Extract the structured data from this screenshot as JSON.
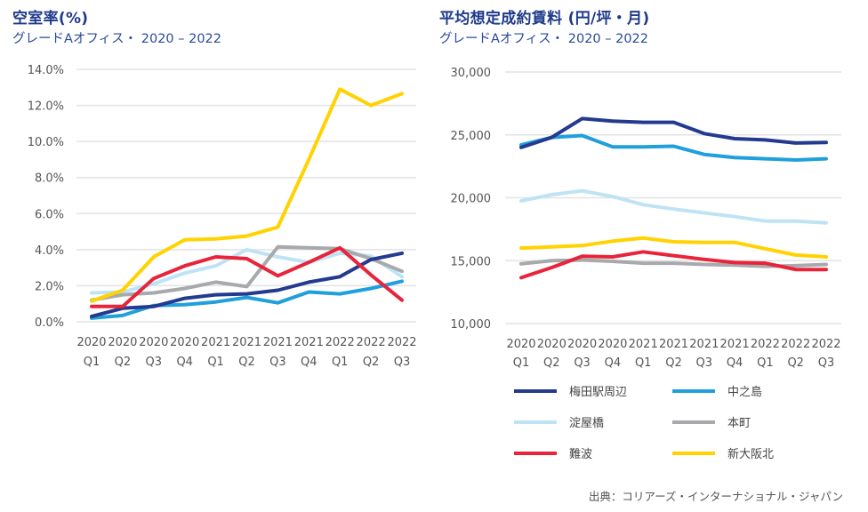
{
  "chart_data": [
    {
      "type": "line",
      "title": "空室率(%)",
      "subtitle": "グレードAオフィス・ 2020 – 2022",
      "xlabel": "",
      "ylabel": "",
      "ylim": [
        0,
        14
      ],
      "yticks": [
        0,
        2,
        4,
        6,
        8,
        10,
        12,
        14
      ],
      "ytick_labels": [
        "0.0%",
        "2.0%",
        "4.0%",
        "6.0%",
        "8.0%",
        "10.0%",
        "12.0%",
        "14.0%"
      ],
      "grid": true,
      "categories": [
        {
          "year": "2020",
          "q": "Q1"
        },
        {
          "year": "2020",
          "q": "Q2"
        },
        {
          "year": "2020",
          "q": "Q3"
        },
        {
          "year": "2020",
          "q": "Q4"
        },
        {
          "year": "2021",
          "q": "Q1"
        },
        {
          "year": "2021",
          "q": "Q2"
        },
        {
          "year": "2021",
          "q": "Q3"
        },
        {
          "year": "2021",
          "q": "Q4"
        },
        {
          "year": "2022",
          "q": "Q1"
        },
        {
          "year": "2022",
          "q": "Q2"
        },
        {
          "year": "2022",
          "q": "Q3"
        }
      ],
      "series": [
        {
          "name": "淀屋橋",
          "color": "#bfe3f5",
          "values": [
            1.6,
            1.65,
            2.1,
            2.7,
            3.1,
            4.0,
            3.6,
            3.3,
            3.8,
            3.65,
            2.5
          ]
        },
        {
          "name": "本町",
          "color": "#a7a9ac",
          "values": [
            1.2,
            1.5,
            1.6,
            1.85,
            2.2,
            1.95,
            4.15,
            4.1,
            4.05,
            3.5,
            2.8
          ]
        },
        {
          "name": "中之島",
          "color": "#1fa0dc",
          "values": [
            0.2,
            0.35,
            0.9,
            0.95,
            1.1,
            1.35,
            1.05,
            1.65,
            1.55,
            1.85,
            2.25
          ]
        },
        {
          "name": "梅田駅周辺",
          "color": "#233a8f",
          "values": [
            0.3,
            0.75,
            0.85,
            1.3,
            1.5,
            1.55,
            1.75,
            2.2,
            2.5,
            3.45,
            3.8
          ]
        },
        {
          "name": "難波",
          "color": "#e8233a",
          "values": [
            0.85,
            0.85,
            2.4,
            3.1,
            3.6,
            3.5,
            2.55,
            3.3,
            4.1,
            2.6,
            1.2
          ]
        },
        {
          "name": "新大阪北",
          "color": "#ffd200",
          "values": [
            1.15,
            1.75,
            3.6,
            4.55,
            4.6,
            4.75,
            5.25,
            9.0,
            12.9,
            12.0,
            12.65
          ]
        }
      ]
    },
    {
      "type": "line",
      "title": "平均想定成約賃料 (円/坪・月)",
      "subtitle": "グレードAオフィス・ 2020 – 2022",
      "xlabel": "",
      "ylabel": "",
      "ylim": [
        10000,
        30000
      ],
      "yticks": [
        10000,
        15000,
        20000,
        25000,
        30000
      ],
      "ytick_labels": [
        "10,000",
        "15,000",
        "20,000",
        "25,000",
        "30,000"
      ],
      "grid": true,
      "categories": [
        {
          "year": "2020",
          "q": "Q1"
        },
        {
          "year": "2020",
          "q": "Q2"
        },
        {
          "year": "2020",
          "q": "Q3"
        },
        {
          "year": "2020",
          "q": "Q4"
        },
        {
          "year": "2021",
          "q": "Q1"
        },
        {
          "year": "2021",
          "q": "Q2"
        },
        {
          "year": "2021",
          "q": "Q3"
        },
        {
          "year": "2021",
          "q": "Q4"
        },
        {
          "year": "2022",
          "q": "Q1"
        },
        {
          "year": "2022",
          "q": "Q2"
        },
        {
          "year": "2022",
          "q": "Q3"
        }
      ],
      "series": [
        {
          "name": "淀屋橋",
          "color": "#bfe3f5",
          "values": [
            19750,
            20250,
            20550,
            20100,
            19450,
            19100,
            18800,
            18500,
            18150,
            18150,
            18000
          ]
        },
        {
          "name": "本町",
          "color": "#a7a9ac",
          "values": [
            14750,
            15000,
            15050,
            14950,
            14800,
            14800,
            14700,
            14650,
            14550,
            14600,
            14700
          ]
        },
        {
          "name": "新大阪北",
          "color": "#ffd200",
          "values": [
            16000,
            16100,
            16200,
            16550,
            16800,
            16500,
            16450,
            16450,
            15950,
            15450,
            15300
          ]
        },
        {
          "name": "難波",
          "color": "#e8233a",
          "values": [
            13650,
            14450,
            15350,
            15300,
            15700,
            15400,
            15100,
            14850,
            14800,
            14300,
            14300
          ]
        },
        {
          "name": "中之島",
          "color": "#1fa0dc",
          "values": [
            24200,
            24800,
            24950,
            24050,
            24050,
            24100,
            23450,
            23200,
            23100,
            23000,
            23100
          ]
        },
        {
          "name": "梅田駅周辺",
          "color": "#233a8f",
          "values": [
            24000,
            24800,
            26300,
            26100,
            26000,
            26000,
            25100,
            24700,
            24600,
            24350,
            24400
          ]
        }
      ],
      "legend": {
        "placement": "bottom",
        "items": [
          {
            "label": "梅田駅周辺",
            "color": "#233a8f"
          },
          {
            "label": "中之島",
            "color": "#1fa0dc"
          },
          {
            "label": "淀屋橋",
            "color": "#bfe3f5"
          },
          {
            "label": "本町",
            "color": "#a7a9ac"
          },
          {
            "label": "難波",
            "color": "#e8233a"
          },
          {
            "label": "新大阪北",
            "color": "#ffd200"
          }
        ]
      }
    }
  ],
  "source": "出典：コリアーズ・インターナショナル・ジャパン"
}
